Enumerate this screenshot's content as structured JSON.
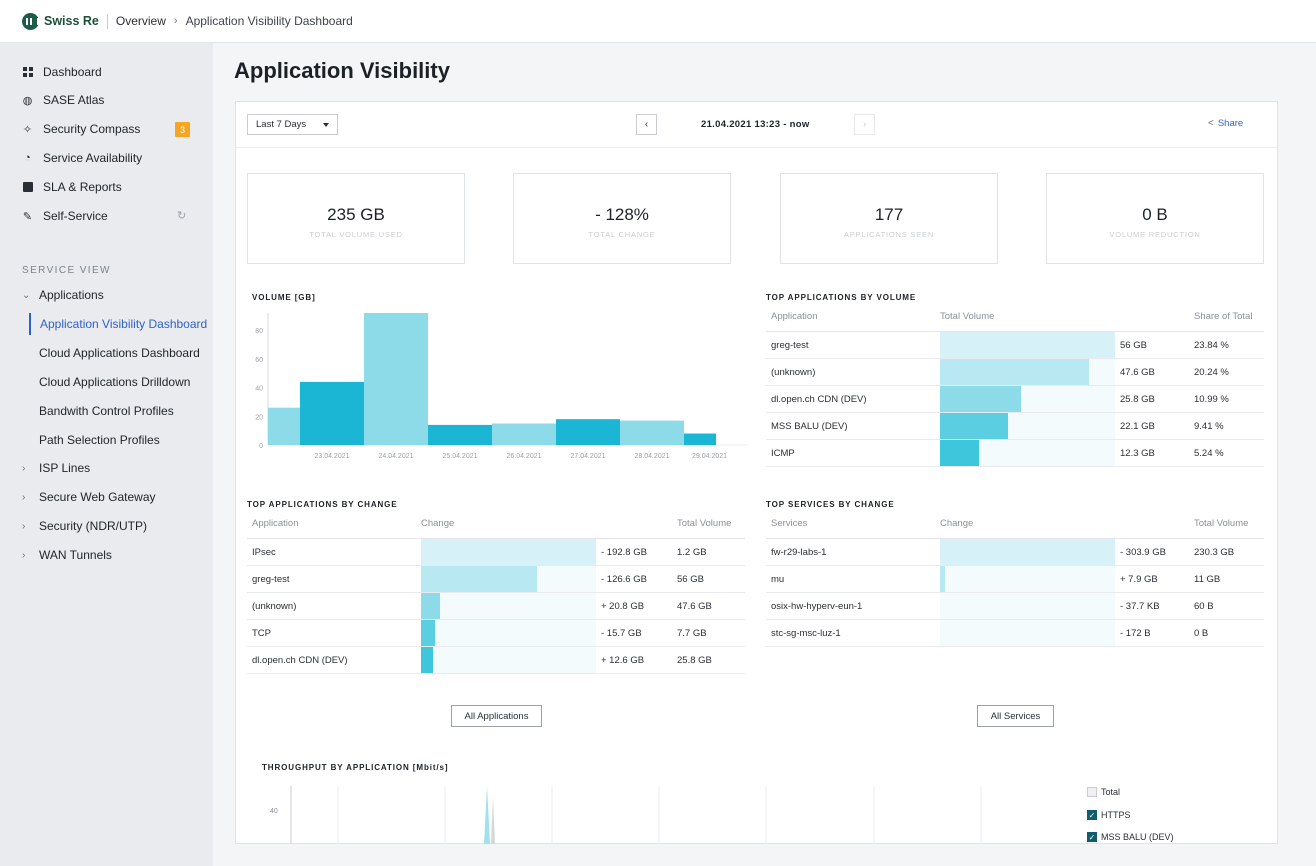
{
  "topbar": {
    "brand": "Swiss Re",
    "breadcrumb_root": "Overview",
    "breadcrumb_current": "Application Visibility Dashboard"
  },
  "sidebar": {
    "items": [
      {
        "label": "Dashboard",
        "icon": "dashboard-grid-icon"
      },
      {
        "label": "SASE Atlas",
        "icon": "globe-icon"
      },
      {
        "label": "Security Compass",
        "icon": "compass-icon",
        "badge": "3"
      },
      {
        "label": "Service Availability",
        "icon": "stopwatch-icon"
      },
      {
        "label": "SLA & Reports",
        "icon": "report-chart-icon"
      },
      {
        "label": "Self-Service",
        "icon": "wrench-icon"
      }
    ],
    "section_title": "SERVICE VIEW",
    "tree": {
      "applications": "Applications",
      "sub": [
        "Application Visibility Dashboard",
        "Cloud Applications Dashboard",
        "Cloud Applications Drilldown",
        "Bandwith Control Profiles",
        "Path Selection Profiles"
      ],
      "others": [
        "ISP Lines",
        "Secure Web Gateway",
        "Security (NDR/UTP)",
        "WAN Tunnels"
      ]
    }
  },
  "main": {
    "title": "Application Visibility",
    "period": "Last 7 Days",
    "prev": "‹",
    "next": "›",
    "date_range": "21.04.2021 13:23 - now",
    "share": "Share"
  },
  "kpis": [
    {
      "value": "235 GB",
      "label": "TOTAL VOLUME USED"
    },
    {
      "value": "- 128%",
      "label": "TOTAL CHANGE"
    },
    {
      "value": "177",
      "label": "APPLICATIONS SEEN"
    },
    {
      "value": "0 B",
      "label": "VOLUME REDUCTION"
    }
  ],
  "chart_data": {
    "type": "bar",
    "title": "VOLUME [GB]",
    "categories": [
      "",
      "23.04.2021",
      "24.04.2021",
      "25.04.2021",
      "26.04.2021",
      "27.04.2021",
      "28.04.2021",
      "29.04.2021"
    ],
    "values": [
      26,
      44,
      92,
      14,
      15,
      18,
      17,
      8
    ],
    "ylim": [
      0,
      92
    ],
    "yticks": [
      0,
      20,
      40,
      60,
      80
    ]
  },
  "top_apps_volume": {
    "title": "TOP APPLICATIONS BY VOLUME",
    "headers": [
      "Application",
      "Total Volume",
      "Share of Total"
    ],
    "rows": [
      {
        "name": "greg-test",
        "volume": "56 GB",
        "share": "23.84 %",
        "pct": 1.0
      },
      {
        "name": "(unknown)",
        "volume": "47.6 GB",
        "share": "20.24 %",
        "pct": 0.85
      },
      {
        "name": "dl.open.ch CDN (DEV)",
        "volume": "25.8 GB",
        "share": "10.99 %",
        "pct": 0.46
      },
      {
        "name": "MSS BALU (DEV)",
        "volume": "22.1 GB",
        "share": "9.41 %",
        "pct": 0.39
      },
      {
        "name": "ICMP",
        "volume": "12.3 GB",
        "share": "5.24 %",
        "pct": 0.22
      }
    ]
  },
  "top_apps_change": {
    "title": "TOP APPLICATIONS BY CHANGE",
    "headers": [
      "Application",
      "Change",
      "Total Volume"
    ],
    "rows": [
      {
        "name": "IPsec",
        "change": "- 192.8 GB",
        "volume": "1.2 GB",
        "pct": 1.0
      },
      {
        "name": "greg-test",
        "change": "- 126.6 GB",
        "volume": "56 GB",
        "pct": 0.66
      },
      {
        "name": "(unknown)",
        "change": "+ 20.8 GB",
        "volume": "47.6 GB",
        "pct": 0.11
      },
      {
        "name": "TCP",
        "change": "- 15.7 GB",
        "volume": "7.7 GB",
        "pct": 0.08
      },
      {
        "name": "dl.open.ch CDN (DEV)",
        "change": "+ 12.6 GB",
        "volume": "25.8 GB",
        "pct": 0.07
      }
    ],
    "button": "All Applications"
  },
  "top_services_change": {
    "title": "TOP SERVICES BY CHANGE",
    "headers": [
      "Services",
      "Change",
      "Total Volume"
    ],
    "rows": [
      {
        "name": "fw-r29-labs-1",
        "change": "- 303.9 GB",
        "volume": "230.3 GB",
        "pct": 1.0
      },
      {
        "name": "mu",
        "change": "+ 7.9 GB",
        "volume": "11 GB",
        "pct": 0.03
      },
      {
        "name": "osix-hw-hyperv-eun-1",
        "change": "- 37.7 KB",
        "volume": "60 B",
        "pct": 0.0
      },
      {
        "name": "stc-sg-msc-luz-1",
        "change": "- 172 B",
        "volume": "0 B",
        "pct": 0.0
      }
    ],
    "button": "All Services"
  },
  "throughput": {
    "title": "THROUGHPUT BY APPLICATION [Mbit/s]",
    "ytick": "40",
    "legend": [
      {
        "label": "Total",
        "checked": false
      },
      {
        "label": "HTTPS",
        "checked": true
      },
      {
        "label": "MSS BALU (DEV)",
        "checked": true
      }
    ]
  },
  "colors": {
    "accent": "#2f62c6",
    "bar_light": "#8ddbe8",
    "bar_dark": "#1bb6d3",
    "badge": "#f5a623"
  }
}
